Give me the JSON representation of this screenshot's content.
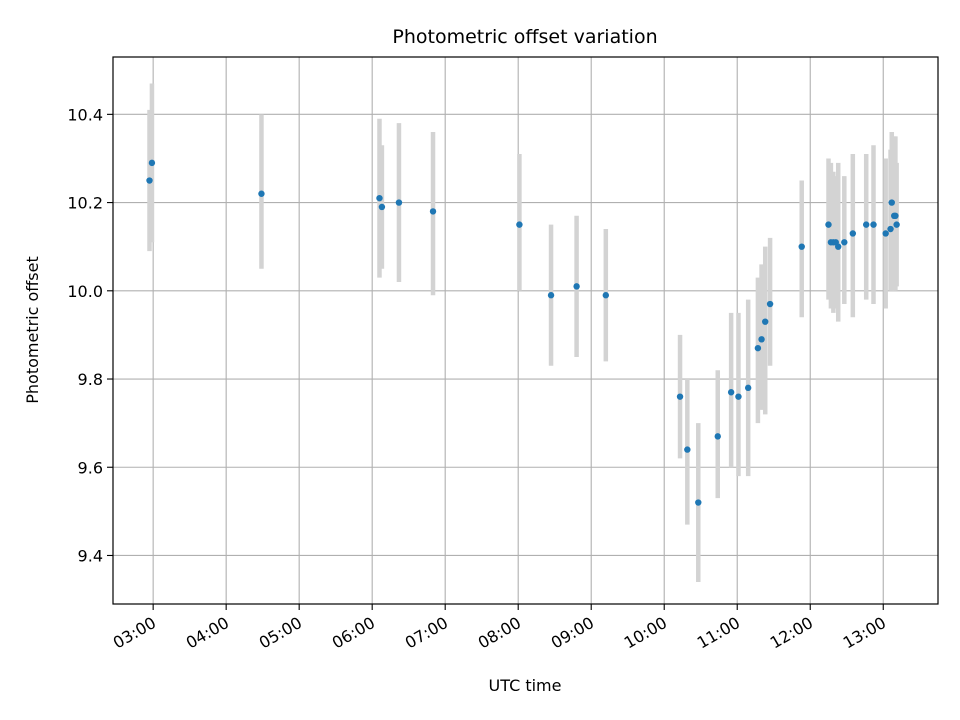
{
  "chart_data": {
    "type": "scatter",
    "title": "Photometric offset variation",
    "xlabel": "UTC time",
    "ylabel": "Photometric offset",
    "x_ticks": [
      "03:00",
      "04:00",
      "05:00",
      "06:00",
      "07:00",
      "08:00",
      "09:00",
      "10:00",
      "11:00",
      "12:00",
      "13:00"
    ],
    "y_ticks": [
      "9.4",
      "9.6",
      "9.8",
      "10.0",
      "10.2",
      "10.4"
    ],
    "xlim": [
      "02:27",
      "13:45"
    ],
    "ylim": [
      9.29,
      10.53
    ],
    "grid": true,
    "point_color": "#1f77b4",
    "errorbar_color": "#d3d3d3",
    "points": [
      {
        "x": "02:57",
        "y": 10.25,
        "lo": 10.09,
        "hi": 10.41
      },
      {
        "x": "02:59",
        "y": 10.29,
        "lo": 10.11,
        "hi": 10.47
      },
      {
        "x": "04:29",
        "y": 10.22,
        "lo": 10.05,
        "hi": 10.4
      },
      {
        "x": "06:06",
        "y": 10.21,
        "lo": 10.03,
        "hi": 10.39
      },
      {
        "x": "06:08",
        "y": 10.19,
        "lo": 10.05,
        "hi": 10.33
      },
      {
        "x": "06:22",
        "y": 10.2,
        "lo": 10.02,
        "hi": 10.38
      },
      {
        "x": "06:50",
        "y": 10.18,
        "lo": 9.99,
        "hi": 10.36
      },
      {
        "x": "08:01",
        "y": 10.15,
        "lo": 10.0,
        "hi": 10.31
      },
      {
        "x": "08:27",
        "y": 9.99,
        "lo": 9.83,
        "hi": 10.15
      },
      {
        "x": "08:48",
        "y": 10.01,
        "lo": 9.85,
        "hi": 10.17
      },
      {
        "x": "09:12",
        "y": 9.99,
        "lo": 9.84,
        "hi": 10.14
      },
      {
        "x": "10:13",
        "y": 9.76,
        "lo": 9.62,
        "hi": 9.9
      },
      {
        "x": "10:19",
        "y": 9.64,
        "lo": 9.47,
        "hi": 9.8
      },
      {
        "x": "10:28",
        "y": 9.52,
        "lo": 9.34,
        "hi": 9.7
      },
      {
        "x": "10:44",
        "y": 9.67,
        "lo": 9.53,
        "hi": 9.82
      },
      {
        "x": "10:55",
        "y": 9.77,
        "lo": 9.6,
        "hi": 9.95
      },
      {
        "x": "11:01",
        "y": 9.76,
        "lo": 9.58,
        "hi": 9.95
      },
      {
        "x": "11:09",
        "y": 9.78,
        "lo": 9.58,
        "hi": 9.98
      },
      {
        "x": "11:17",
        "y": 9.87,
        "lo": 9.7,
        "hi": 10.03
      },
      {
        "x": "11:20",
        "y": 9.89,
        "lo": 9.73,
        "hi": 10.06
      },
      {
        "x": "11:23",
        "y": 9.93,
        "lo": 9.72,
        "hi": 10.1
      },
      {
        "x": "11:27",
        "y": 9.97,
        "lo": 9.83,
        "hi": 10.12
      },
      {
        "x": "11:53",
        "y": 10.1,
        "lo": 9.94,
        "hi": 10.25
      },
      {
        "x": "12:15",
        "y": 10.15,
        "lo": 9.98,
        "hi": 10.3
      },
      {
        "x": "12:17",
        "y": 10.11,
        "lo": 9.96,
        "hi": 10.29
      },
      {
        "x": "12:19",
        "y": 10.11,
        "lo": 9.95,
        "hi": 10.27
      },
      {
        "x": "12:21",
        "y": 10.11,
        "lo": 9.96,
        "hi": 10.26
      },
      {
        "x": "12:23",
        "y": 10.1,
        "lo": 9.93,
        "hi": 10.29
      },
      {
        "x": "12:28",
        "y": 10.11,
        "lo": 9.97,
        "hi": 10.26
      },
      {
        "x": "12:35",
        "y": 10.13,
        "lo": 9.94,
        "hi": 10.31
      },
      {
        "x": "12:46",
        "y": 10.15,
        "lo": 9.98,
        "hi": 10.31
      },
      {
        "x": "12:52",
        "y": 10.15,
        "lo": 9.97,
        "hi": 10.33
      },
      {
        "x": "13:02",
        "y": 10.13,
        "lo": 9.96,
        "hi": 10.3
      },
      {
        "x": "13:06",
        "y": 10.14,
        "lo": 10.0,
        "hi": 10.32
      },
      {
        "x": "13:07",
        "y": 10.2,
        "lo": 10.0,
        "hi": 10.36
      },
      {
        "x": "13:09",
        "y": 10.17,
        "lo": 10.0,
        "hi": 10.35
      },
      {
        "x": "13:10",
        "y": 10.17,
        "lo": 10.0,
        "hi": 10.35
      },
      {
        "x": "13:11",
        "y": 10.15,
        "lo": 10.01,
        "hi": 10.29
      }
    ]
  }
}
